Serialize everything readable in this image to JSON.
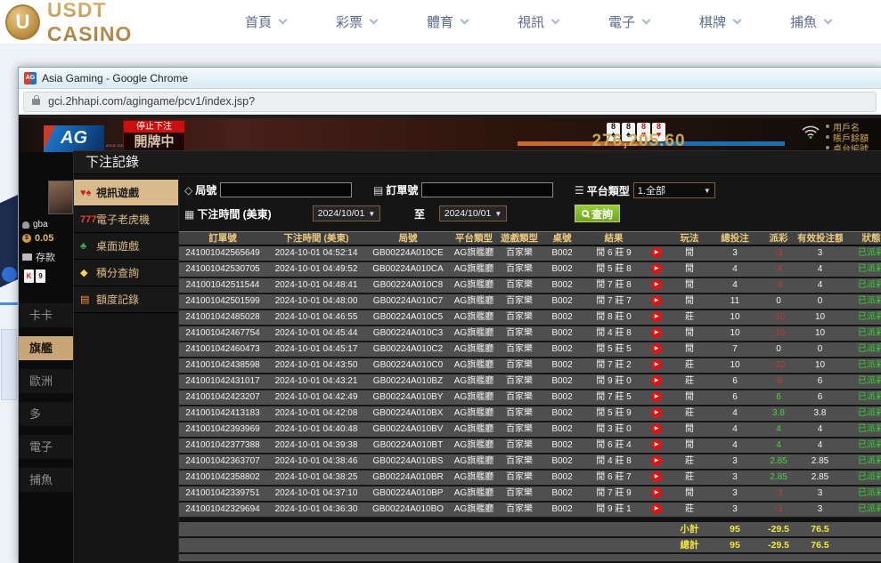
{
  "site_header": {
    "logo": {
      "coin_letter": "U",
      "text": "USDT CASINO"
    },
    "nav_items": [
      "首頁",
      "彩票",
      "體育",
      "視訊",
      "電子",
      "棋牌",
      "捕魚"
    ]
  },
  "browser": {
    "favicon_text": "AG",
    "window_title": "Asia Gaming - Google Chrome",
    "url": "gci.2hhapi.com/agingame/pcv1/index.jsp?"
  },
  "game": {
    "logo_text": "AG",
    "logo_sub": "ASIA GAMING",
    "stop_banner": "停止下注",
    "dealing_text": "開牌中",
    "cards": [
      {
        "rank": "8",
        "suit": "♠"
      },
      {
        "rank": "8",
        "suit": "♠"
      },
      {
        "rank": "8",
        "suit": "♥"
      },
      {
        "rank": "8",
        "suit": "♥"
      }
    ],
    "balance_display": "276,205.60",
    "account_labels": [
      "用戶名",
      "賬戶餘額",
      "桌台編號"
    ],
    "left_panel": {
      "username": "gba",
      "balance": "0.05",
      "deposit_label": "存款",
      "mini_cards": [
        {
          "rank": "K",
          "color": "red"
        },
        {
          "rank": "9",
          "color": "blk"
        }
      ],
      "nav_items": [
        {
          "label": "卡卡",
          "active": false
        },
        {
          "label": "旗艦",
          "active": true
        },
        {
          "label": "歐洲",
          "active": false
        },
        {
          "label": "多",
          "active": false
        },
        {
          "label": "電子",
          "active": false
        },
        {
          "label": "捕魚",
          "active": false
        }
      ]
    }
  },
  "modal": {
    "title": "下注記錄",
    "accent_colors": {
      "sidebar_active": "#d9ba8c",
      "search_green": "#7ab520",
      "summary_yellow": "#f4e83c",
      "win_green": "#4ccf3f",
      "loss_red": "#c23b3b",
      "status_green": "#35d435",
      "header_gold": "#ecca7e"
    },
    "sidebar_items": [
      {
        "icon": "video-games-icon",
        "glyph": "♥♠",
        "glyph_color": "#cc2222",
        "label": "視訊遊戲",
        "active": true
      },
      {
        "icon": "slot-machine-icon",
        "glyph": "777",
        "glyph_color": "#e84040",
        "label": "電子老虎機",
        "active": false
      },
      {
        "icon": "table-games-icon",
        "glyph": "♣",
        "glyph_color": "#3fae4a",
        "label": "桌面遊戲",
        "active": false
      },
      {
        "icon": "points-query-icon",
        "glyph": "◆",
        "glyph_color": "#ffd24a",
        "label": "積分查詢",
        "active": false
      },
      {
        "icon": "quota-records-icon",
        "glyph": "▤",
        "glyph_color": "#ff9a2a",
        "label": "額度記錄",
        "active": false
      }
    ],
    "filters": {
      "round_label": "局號",
      "round_value": "",
      "order_label": "訂單號",
      "order_value": "",
      "platform_label": "平台類型",
      "platform_value": "1.全部",
      "time_label": "下注時間 (美東)",
      "date_from": "2024/10/01",
      "to_label": "至",
      "date_to": "2024/10/01",
      "search_label": "查詢"
    },
    "table": {
      "headers": [
        "訂單號",
        "下注時間 (美東)",
        "局號",
        "平台類型",
        "遊戲類型",
        "桌號",
        "結果",
        "",
        "玩法",
        "總投注",
        "派彩",
        "有效投注額",
        "狀態"
      ],
      "rows": [
        {
          "order": "241001042565649",
          "time": "2024-10-01 04:52:14",
          "round": "GB00224A010CE",
          "platform": "AG旗艦廳",
          "game": "百家樂",
          "table": "B002",
          "result": "閒 6 莊 9",
          "method": "閒",
          "bet": "3",
          "payout": "-3",
          "valid": "3",
          "status": "已派彩"
        },
        {
          "order": "241001042530705",
          "time": "2024-10-01 04:49:52",
          "round": "GB00224A010CA",
          "platform": "AG旗艦廳",
          "game": "百家樂",
          "table": "B002",
          "result": "閒 5 莊 8",
          "method": "閒",
          "bet": "4",
          "payout": "-4",
          "valid": "4",
          "status": "已派彩"
        },
        {
          "order": "241001042511544",
          "time": "2024-10-01 04:48:41",
          "round": "GB00224A010C8",
          "platform": "AG旗艦廳",
          "game": "百家樂",
          "table": "B002",
          "result": "閒 7 莊 8",
          "method": "閒",
          "bet": "4",
          "payout": "-4",
          "valid": "4",
          "status": "已派彩"
        },
        {
          "order": "241001042501599",
          "time": "2024-10-01 04:48:00",
          "round": "GB00224A010C7",
          "platform": "AG旗艦廳",
          "game": "百家樂",
          "table": "B002",
          "result": "閒 7 莊 7",
          "method": "閒",
          "bet": "11",
          "payout": "0",
          "valid": "0",
          "status": "已派彩"
        },
        {
          "order": "241001042485028",
          "time": "2024-10-01 04:46:55",
          "round": "GB00224A010C5",
          "platform": "AG旗艦廳",
          "game": "百家樂",
          "table": "B002",
          "result": "閒 8 莊 0",
          "method": "莊",
          "bet": "10",
          "payout": "-10",
          "valid": "10",
          "status": "已派彩"
        },
        {
          "order": "241001042467754",
          "time": "2024-10-01 04:45:44",
          "round": "GB00224A010C3",
          "platform": "AG旗艦廳",
          "game": "百家樂",
          "table": "B002",
          "result": "閒 4 莊 8",
          "method": "閒",
          "bet": "10",
          "payout": "-10",
          "valid": "10",
          "status": "已派彩"
        },
        {
          "order": "241001042460473",
          "time": "2024-10-01 04:45:17",
          "round": "GB00224A010C2",
          "platform": "AG旗艦廳",
          "game": "百家樂",
          "table": "B002",
          "result": "閒 5 莊 5",
          "method": "閒",
          "bet": "7",
          "payout": "0",
          "valid": "0",
          "status": "已派彩"
        },
        {
          "order": "241001042438598",
          "time": "2024-10-01 04:43:50",
          "round": "GB00224A010C0",
          "platform": "AG旗艦廳",
          "game": "百家樂",
          "table": "B002",
          "result": "閒 7 莊 2",
          "method": "莊",
          "bet": "10",
          "payout": "-10",
          "valid": "10",
          "status": "已派彩"
        },
        {
          "order": "241001042431017",
          "time": "2024-10-01 04:43:21",
          "round": "GB00224A010BZ",
          "platform": "AG旗艦廳",
          "game": "百家樂",
          "table": "B002",
          "result": "閒 9 莊 0",
          "method": "莊",
          "bet": "6",
          "payout": "-6",
          "valid": "6",
          "status": "已派彩"
        },
        {
          "order": "241001042423207",
          "time": "2024-10-01 04:42:49",
          "round": "GB00224A010BY",
          "platform": "AG旗艦廳",
          "game": "百家樂",
          "table": "B002",
          "result": "閒 7 莊 5",
          "method": "閒",
          "bet": "6",
          "payout": "6",
          "valid": "6",
          "status": "已派彩"
        },
        {
          "order": "241001042413183",
          "time": "2024-10-01 04:42:08",
          "round": "GB00224A010BX",
          "platform": "AG旗艦廳",
          "game": "百家樂",
          "table": "B002",
          "result": "閒 5 莊 9",
          "method": "莊",
          "bet": "4",
          "payout": "3.8",
          "valid": "3.8",
          "status": "已派彩"
        },
        {
          "order": "241001042393969",
          "time": "2024-10-01 04:40:48",
          "round": "GB00224A010BV",
          "platform": "AG旗艦廳",
          "game": "百家樂",
          "table": "B002",
          "result": "閒 3 莊 0",
          "method": "閒",
          "bet": "4",
          "payout": "4",
          "valid": "4",
          "status": "已派彩"
        },
        {
          "order": "241001042377388",
          "time": "2024-10-01 04:39:38",
          "round": "GB00224A010BT",
          "platform": "AG旗艦廳",
          "game": "百家樂",
          "table": "B002",
          "result": "閒 6 莊 4",
          "method": "閒",
          "bet": "4",
          "payout": "4",
          "valid": "4",
          "status": "已派彩"
        },
        {
          "order": "241001042363707",
          "time": "2024-10-01 04:38:46",
          "round": "GB00224A010BS",
          "platform": "AG旗艦廳",
          "game": "百家樂",
          "table": "B002",
          "result": "閒 4 莊 8",
          "method": "莊",
          "bet": "3",
          "payout": "2.85",
          "valid": "2.85",
          "status": "已派彩"
        },
        {
          "order": "241001042358802",
          "time": "2024-10-01 04:38:25",
          "round": "GB00224A010BR",
          "platform": "AG旗艦廳",
          "game": "百家樂",
          "table": "B002",
          "result": "閒 6 莊 7",
          "method": "莊",
          "bet": "3",
          "payout": "2.85",
          "valid": "2.85",
          "status": "已派彩"
        },
        {
          "order": "241001042339751",
          "time": "2024-10-01 04:37:10",
          "round": "GB00224A010BP",
          "platform": "AG旗艦廳",
          "game": "百家樂",
          "table": "B002",
          "result": "閒 7 莊 9",
          "method": "閒",
          "bet": "3",
          "payout": "-3",
          "valid": "3",
          "status": "已派彩"
        },
        {
          "order": "241001042329694",
          "time": "2024-10-01 04:36:30",
          "round": "GB00224A010BO",
          "platform": "AG旗艦廳",
          "game": "百家樂",
          "table": "B002",
          "result": "閒 9 莊 1",
          "method": "莊",
          "bet": "3",
          "payout": "-3",
          "valid": "3",
          "status": "已派彩"
        }
      ],
      "subtotal": {
        "label": "小計",
        "bet": "95",
        "payout": "-29.5",
        "valid": "76.5"
      },
      "total": {
        "label": "總計",
        "bet": "95",
        "payout": "-29.5",
        "valid": "76.5"
      }
    }
  }
}
